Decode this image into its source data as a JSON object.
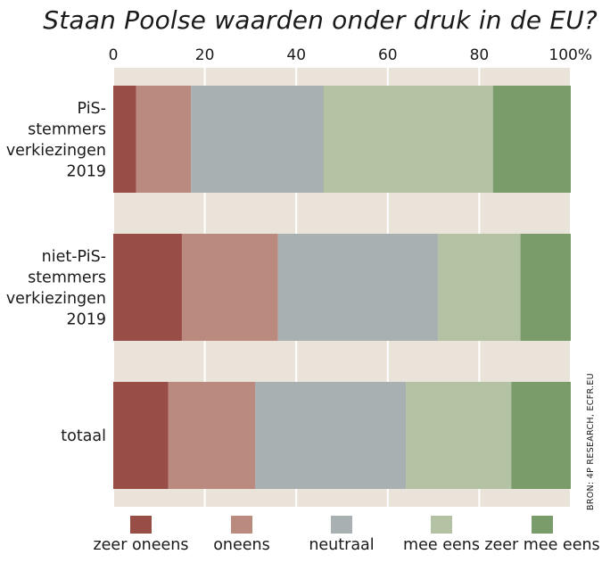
{
  "chart_data": {
    "type": "bar",
    "stacked": true,
    "orientation": "horizontal",
    "title": "Staan Poolse waarden onder druk in de EU?",
    "source": "BRON: 4P RESEARCH, ECFR.EU",
    "x_ticks": [
      "0",
      "20",
      "40",
      "60",
      "80",
      "100%"
    ],
    "xlim": [
      0,
      100
    ],
    "grid": true,
    "legend_position": "bottom",
    "categories": [
      [
        "PiS-",
        "stemmers",
        "verkiezingen",
        "2019"
      ],
      [
        "niet-PiS-",
        "stemmers",
        "verkiezingen",
        "2019"
      ],
      [
        "totaal"
      ]
    ],
    "series": [
      {
        "name": "zeer oneens",
        "color": "#984e46",
        "values": [
          5,
          15,
          12
        ]
      },
      {
        "name": "oneens",
        "color": "#bb8a7f",
        "values": [
          12,
          21,
          19
        ]
      },
      {
        "name": "neutraal",
        "color": "#a8b0b1",
        "values": [
          29,
          35,
          33
        ]
      },
      {
        "name": "mee eens",
        "color": "#b2c2a2",
        "values": [
          37,
          18,
          23
        ]
      },
      {
        "name": "zeer mee eens",
        "color": "#7a9c6b",
        "values": [
          17,
          11,
          13
        ]
      }
    ],
    "background_color": "#e9e3d9"
  }
}
